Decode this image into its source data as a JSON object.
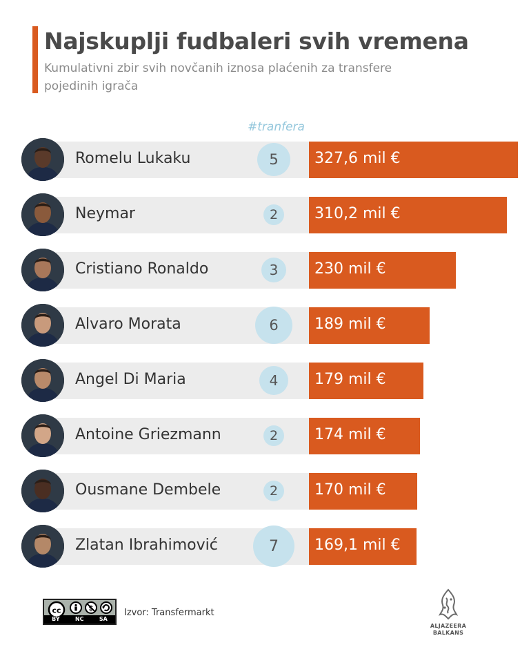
{
  "header": {
    "title": "Najskuplji fudbaleri svih vremena",
    "subtitle": "Kumulativni zbir svih novčanih iznosa plaćenih za transfere pojedinih igrača",
    "count_column_label": "#tranfera"
  },
  "chart_data": {
    "type": "bar",
    "orientation": "horizontal",
    "title": "Najskuplji fudbaleri svih vremena",
    "subtitle": "Kumulativni zbir svih novčanih iznosa plaćenih za transfere pojedinih igrača",
    "categories": [
      "Romelu Lukaku",
      "Neymar",
      "Cristiano Ronaldo",
      "Alvaro Morata",
      "Angel Di Maria",
      "Antoine Griezmann",
      "Ousmane Dembele",
      "Zlatan Ibrahimović"
    ],
    "series": [
      {
        "values": [
          327.6,
          310.2,
          230,
          189,
          179,
          174,
          170,
          169.1
        ],
        "labels": [
          "327,6 mil €",
          "310,2 mil €",
          "230 mil €",
          "189 mil €",
          "179 mil €",
          "174 mil €",
          "170 mil €",
          "169,1 mil €"
        ]
      }
    ],
    "transfer_counts": [
      5,
      2,
      3,
      6,
      4,
      2,
      2,
      7
    ],
    "bar_color": "#d95a1f",
    "count_color": "#c6e2ed",
    "grid": false
  },
  "footer": {
    "license": "BY NC SA",
    "source": "Izvor: Transfermarkt",
    "brand_line1": "ALJAZEERA",
    "brand_line2": "BALKANS"
  }
}
